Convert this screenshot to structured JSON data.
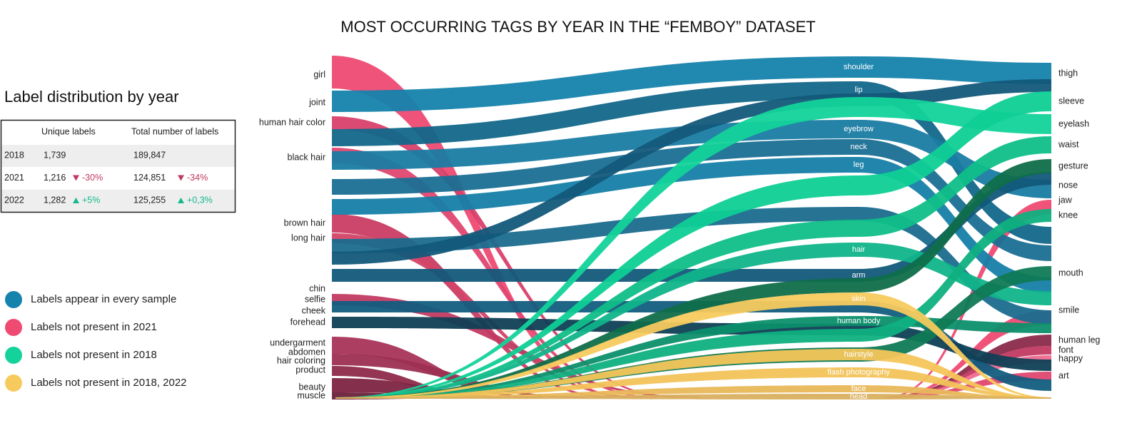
{
  "title": "MOST OCCURRING TAGS BY YEAR IN THE “FEMBOY” DATASET",
  "table": {
    "title": "Label distribution by year",
    "headers": [
      "Unique labels",
      "Total number of labels"
    ],
    "rows": [
      {
        "year": "2018",
        "unique": "1,739",
        "total": "189,847"
      },
      {
        "year": "2021",
        "unique": "1,216",
        "unique_change": "-30%",
        "total": "124,851",
        "total_change": "-34%"
      },
      {
        "year": "2022",
        "unique": "1,282",
        "unique_change": "+5%",
        "total": "125,255",
        "total_change": "+0,3%"
      }
    ]
  },
  "legend": [
    {
      "label": "Labels appear in every sample",
      "color": "#1583ac"
    },
    {
      "label": "Labels not present in 2021",
      "color": "#ef4a72"
    },
    {
      "label": "Labels not present in 2018",
      "color": "#14d39a"
    },
    {
      "label": "Labels not present in 2018, 2022",
      "color": "#f7ca5e"
    }
  ],
  "columns": {
    "left": [
      "girl",
      "joint",
      "human hair color",
      "black hair",
      "brown hair",
      "long hair",
      "chin",
      "selfie",
      "cheek",
      "forehead",
      "undergarment",
      "abdomen",
      "hair coloring",
      "product",
      "beauty",
      "muscle"
    ],
    "middle": [
      "shoulder",
      "lip",
      "eyebrow",
      "neck",
      "leg",
      "hair",
      "arm",
      "skin",
      "human body",
      "hairstyle",
      "flash photography",
      "face",
      "head"
    ],
    "right": [
      "thigh",
      "sleeve",
      "eyelash",
      "waist",
      "gesture",
      "nose",
      "jaw",
      "knee",
      "mouth",
      "smile",
      "human leg",
      "font",
      "happy",
      "art"
    ]
  }
}
